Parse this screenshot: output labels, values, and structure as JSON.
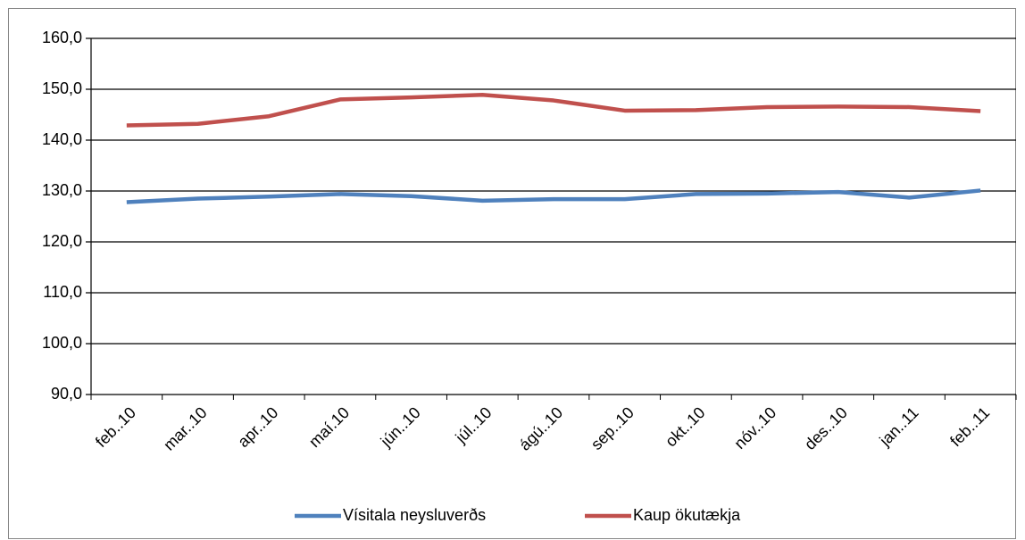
{
  "chart_data": {
    "type": "line",
    "categories": [
      "feb..10",
      "mar..10",
      "apr..10",
      "maí.10",
      "jún..10",
      "júl..10",
      "ágú..10",
      "sep..10",
      "okt..10",
      "nóv..10",
      "des..10",
      "jan..11",
      "feb..11"
    ],
    "series": [
      {
        "name": "Vísitala neysluverðs",
        "color": "#4f81bd",
        "values": [
          127.8,
          128.5,
          128.9,
          129.4,
          129.0,
          128.1,
          128.4,
          128.4,
          129.4,
          129.5,
          129.8,
          128.7,
          130.1
        ]
      },
      {
        "name": "Kaup ökutækja",
        "color": "#c0504d",
        "values": [
          142.9,
          143.2,
          144.7,
          148.0,
          148.4,
          148.9,
          147.8,
          145.8,
          145.9,
          146.5,
          146.6,
          146.5,
          145.7
        ]
      }
    ],
    "ylim": [
      90,
      160
    ],
    "yticks": [
      {
        "value": 90,
        "label": "90,0"
      },
      {
        "value": 100,
        "label": "100,0"
      },
      {
        "value": 110,
        "label": "110,0"
      },
      {
        "value": 120,
        "label": "120,0"
      },
      {
        "value": 130,
        "label": "130,0"
      },
      {
        "value": 140,
        "label": "140,0"
      },
      {
        "value": 150,
        "label": "150,0"
      },
      {
        "value": 160,
        "label": "160,0"
      }
    ],
    "grid": true,
    "legend": "bottom"
  }
}
